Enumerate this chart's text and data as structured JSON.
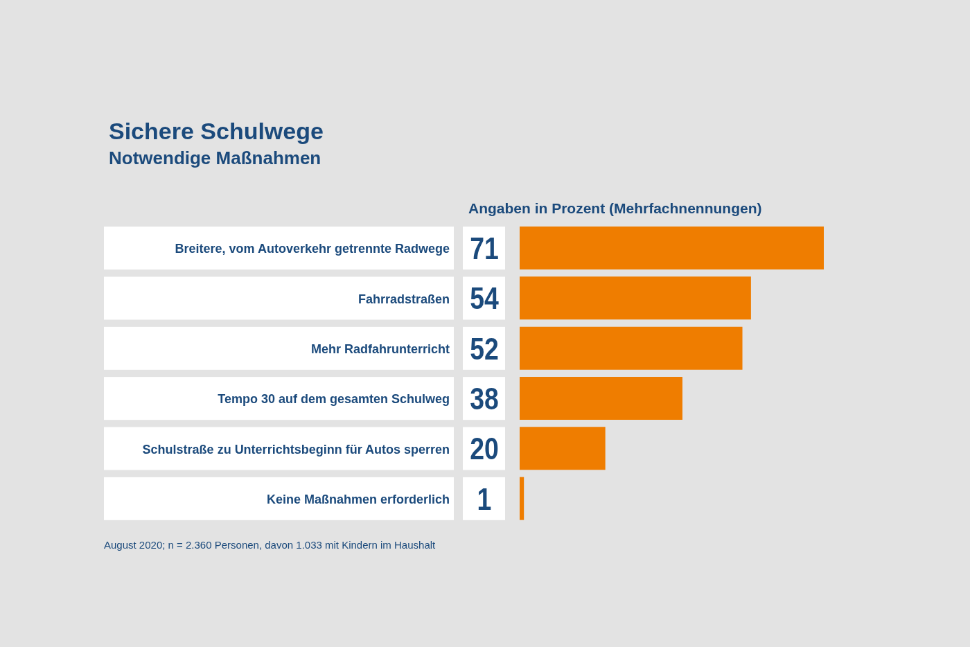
{
  "chart_data": {
    "type": "bar",
    "orientation": "horizontal",
    "title": "Sichere Schulwege",
    "subtitle": "Notwendige Maßnahmen",
    "xlabel": "Angaben in Prozent (Mehrfachnennungen)",
    "categories": [
      "Breitere, vom Autoverkehr getrennte Radwege",
      "Fahrradstraßen",
      "Mehr Radfahrunterricht",
      "Tempo 30 auf dem gesamten Schulweg",
      "Schulstraße zu Unterrichtsbeginn für Autos sperren",
      "Keine Maßnahmen erforderlich"
    ],
    "values": [
      71,
      54,
      52,
      38,
      20,
      1
    ],
    "color": "#ef7d00",
    "data_labels": true,
    "annotations": [
      "August 2020; n = 2.360 Personen, davon 1.033 mit Kindern im Haushalt"
    ]
  }
}
